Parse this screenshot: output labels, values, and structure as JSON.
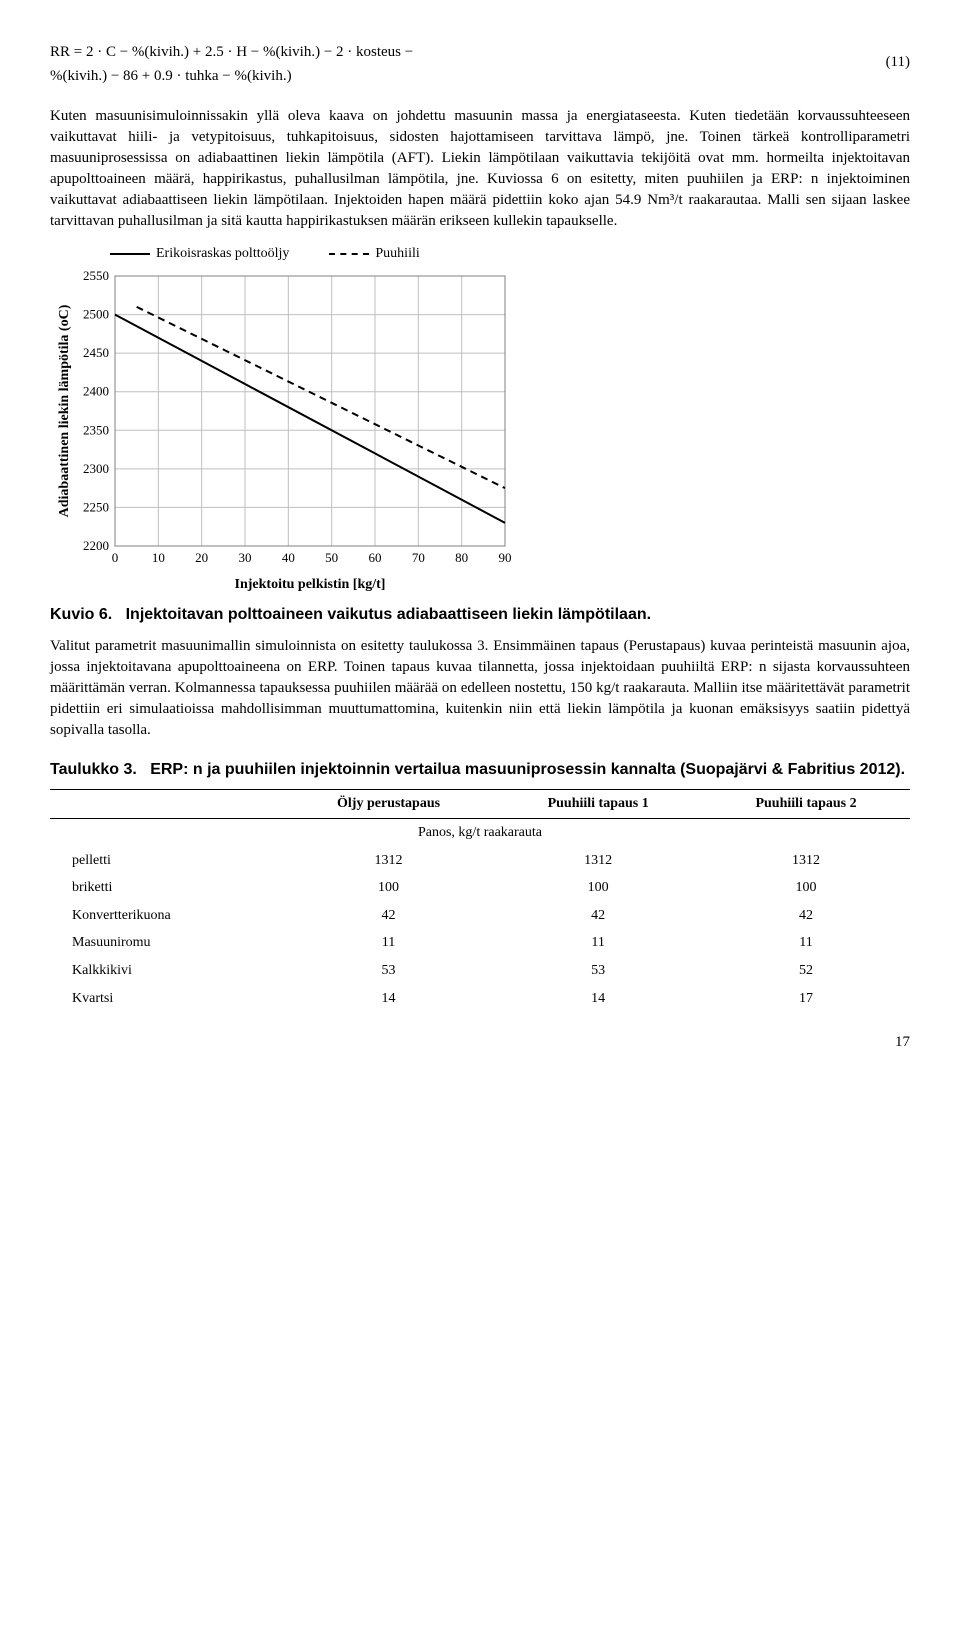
{
  "equation": {
    "line1": "RR = 2 · C − %(kivih.) + 2.5 · H − %(kivih.) − 2 · kosteus −",
    "line2": "%(kivih.) − 86 + 0.9 · tuhka − %(kivih.)",
    "number": "(11)"
  },
  "para1": "Kuten masuunisimuloinnissakin yllä oleva kaava on johdettu masuunin massa ja energiataseesta. Kuten tiedetään korvaussuhteeseen vaikuttavat hiili- ja vetypitoisuus, tuhkapitoisuus, sidosten hajottamiseen tarvittava lämpö, jne. Toinen tärkeä kontrolliparametri masuuniprosessissa on adiabaattinen liekin lämpötila (AFT). Liekin lämpötilaan vaikuttavia tekijöitä ovat mm. hormeilta injektoitavan apupolttoaineen määrä, happirikastus, puhallusilman lämpötila, jne. Kuviossa 6 on esitetty, miten puuhiilen ja ERP: n injektoiminen vaikuttavat adiabaattiseen liekin lämpötilaan. Injektoiden hapen määrä pidettiin koko ajan 54.9 Nm³/t raakarautaa. Malli sen sijaan laskee tarvittavan puhallusilman ja sitä kautta happirikastuksen määrän erikseen kullekin tapaukselle.",
  "chart": {
    "type": "line",
    "legend": {
      "a": "Erikoisraskas polttoöljy",
      "b": "Puuhiili"
    },
    "xlabel": "Injektoitu pelkistin [kg/t]",
    "ylabel": "Adiabaattinen liekin lämpötila (oC)",
    "xlim": [
      0,
      90
    ],
    "ylim": [
      2200,
      2550
    ],
    "xtick_step": 10,
    "ytick_step": 50,
    "grid_color": "#bfbfbf",
    "background_color": "#ffffff",
    "series": [
      {
        "name": "Erikoisraskas polttoöljy",
        "style": "solid",
        "color": "#000000",
        "width": 2,
        "x": [
          0,
          90
        ],
        "y": [
          2500,
          2230
        ]
      },
      {
        "name": "Puuhiili",
        "style": "dashed",
        "color": "#000000",
        "width": 2,
        "x": [
          5,
          90
        ],
        "y": [
          2510,
          2275
        ]
      }
    ],
    "label_fontsize": 13,
    "tick_fontsize": 13
  },
  "caption6_a": "Kuvio 6.",
  "caption6_b": "Injektoitavan polttoaineen vaikutus adiabaattiseen liekin lämpötilaan.",
  "para2": "Valitut parametrit masuunimallin simuloinnista on esitetty taulukossa 3. Ensimmäinen tapaus (Perustapaus) kuvaa perinteistä masuunin ajoa, jossa injektoitavana apupolttoaineena on ERP. Toinen tapaus kuvaa tilannetta, jossa injektoidaan puuhiiltä ERP: n sijasta korvaussuhteen määrittämän verran. Kolmannessa tapauksessa puuhiilen määrää on edelleen nostettu, 150 kg/t raakarauta. Malliin itse määritettävät parametrit pidettiin eri simulaatioissa mahdollisimman muuttumattomina, kuitenkin niin että liekin lämpötila ja kuonan emäksisyys saatiin pidettyä sopivalla tasolla.",
  "tablecaption_a": "Taulukko 3.",
  "tablecaption_b": "ERP: n ja puuhiilen injektoinnin vertailua masuuniprosessin kannalta (Suopajärvi & Fabritius 2012).",
  "table": {
    "columns": [
      "",
      "Öljy perustapaus",
      "Puuhiili tapaus 1",
      "Puuhiili tapaus 2"
    ],
    "section": "Panos, kg/t raakarauta",
    "rows": [
      [
        "pelletti",
        "1312",
        "1312",
        "1312"
      ],
      [
        "briketti",
        "100",
        "100",
        "100"
      ],
      [
        "Konvertterikuona",
        "42",
        "42",
        "42"
      ],
      [
        "Masuuniromu",
        "11",
        "11",
        "11"
      ],
      [
        "Kalkkikivi",
        "53",
        "53",
        "52"
      ],
      [
        "Kvartsi",
        "14",
        "14",
        "17"
      ]
    ]
  },
  "pagenum": "17"
}
